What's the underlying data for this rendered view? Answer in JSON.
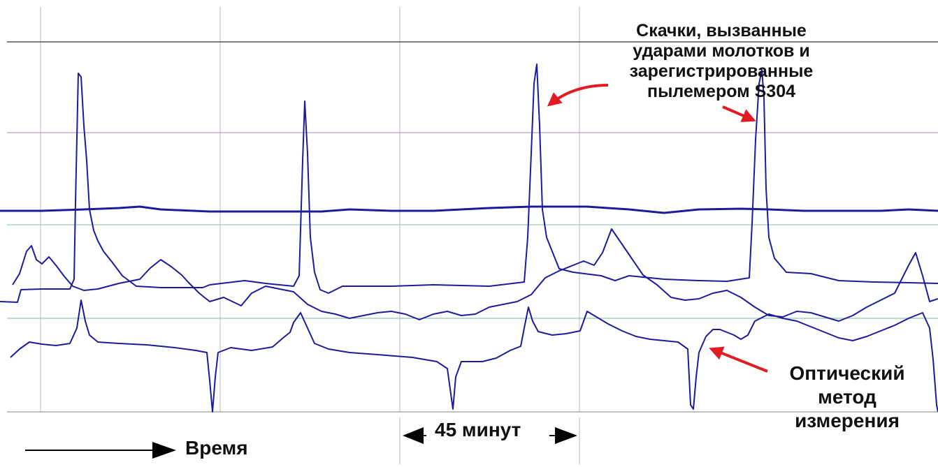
{
  "chart_data": {
    "type": "line",
    "title": "",
    "xlabel": "Время",
    "ylabel": "",
    "grid": true,
    "scale_note": "45 минут",
    "annotations": [
      {
        "name": "spikes-note",
        "lines": [
          "Скачки, вызванные",
          "ударами молотков и",
          "зарегистрированные",
          "пылемером S304"
        ]
      },
      {
        "name": "optical-note",
        "lines": [
          "Оптический",
          "метод",
          "измерения"
        ]
      }
    ],
    "series": [
      {
        "color": "#1c1c9a",
        "points": [
          [
            0,
            432
          ],
          [
            25,
            433
          ],
          [
            30,
            415
          ],
          [
            60,
            414
          ],
          [
            100,
            414
          ],
          [
            106,
            400
          ],
          [
            108,
            290
          ],
          [
            112,
            105
          ],
          [
            116,
            110
          ],
          [
            120,
            180
          ],
          [
            124,
            230
          ],
          [
            128,
            300
          ],
          [
            134,
            330
          ],
          [
            140,
            345
          ],
          [
            148,
            360
          ],
          [
            160,
            375
          ],
          [
            175,
            395
          ],
          [
            195,
            410
          ],
          [
            230,
            412
          ],
          [
            290,
            412
          ],
          [
            300,
            408
          ],
          [
            350,
            402
          ],
          [
            380,
            406
          ],
          [
            420,
            410
          ],
          [
            428,
            395
          ],
          [
            433,
            230
          ],
          [
            436,
            145
          ],
          [
            440,
            220
          ],
          [
            444,
            340
          ],
          [
            450,
            390
          ],
          [
            458,
            415
          ],
          [
            470,
            420
          ],
          [
            490,
            410
          ],
          [
            560,
            410
          ],
          [
            620,
            408
          ],
          [
            700,
            410
          ],
          [
            750,
            404
          ],
          [
            755,
            340
          ],
          [
            760,
            220
          ],
          [
            764,
            120
          ],
          [
            768,
            92
          ],
          [
            772,
            180
          ],
          [
            776,
            300
          ],
          [
            782,
            340
          ],
          [
            790,
            360
          ],
          [
            800,
            385
          ],
          [
            820,
            390
          ],
          [
            860,
            395
          ],
          [
            880,
            402
          ],
          [
            900,
            395
          ],
          [
            950,
            400
          ],
          [
            1000,
            402
          ],
          [
            1040,
            403
          ],
          [
            1072,
            398
          ],
          [
            1076,
            320
          ],
          [
            1081,
            200
          ],
          [
            1086,
            120
          ],
          [
            1090,
            100
          ],
          [
            1093,
            140
          ],
          [
            1096,
            270
          ],
          [
            1100,
            340
          ],
          [
            1108,
            370
          ],
          [
            1125,
            390
          ],
          [
            1160,
            392
          ],
          [
            1200,
            402
          ],
          [
            1250,
            404
          ],
          [
            1300,
            405
          ],
          [
            1342,
            406
          ]
        ]
      },
      {
        "color": "#1c1c9a",
        "points": [
          [
            0,
            302
          ],
          [
            60,
            302
          ],
          [
            120,
            300
          ],
          [
            170,
            298
          ],
          [
            200,
            296
          ],
          [
            230,
            300
          ],
          [
            300,
            303
          ],
          [
            380,
            303
          ],
          [
            460,
            303
          ],
          [
            500,
            300
          ],
          [
            560,
            302
          ],
          [
            620,
            302
          ],
          [
            700,
            298
          ],
          [
            760,
            296
          ],
          [
            840,
            296
          ],
          [
            900,
            300
          ],
          [
            950,
            305
          ],
          [
            1000,
            300
          ],
          [
            1060,
            299
          ],
          [
            1100,
            300
          ],
          [
            1150,
            302
          ],
          [
            1200,
            302
          ],
          [
            1260,
            302
          ],
          [
            1300,
            300
          ],
          [
            1342,
            302
          ]
        ]
      },
      {
        "color": "#1c1c9a",
        "points": [
          [
            18,
            408
          ],
          [
            28,
            392
          ],
          [
            38,
            360
          ],
          [
            45,
            352
          ],
          [
            52,
            372
          ],
          [
            60,
            378
          ],
          [
            70,
            368
          ],
          [
            80,
            380
          ],
          [
            92,
            396
          ],
          [
            104,
            410
          ],
          [
            120,
            416
          ],
          [
            140,
            414
          ],
          [
            170,
            406
          ],
          [
            200,
            400
          ],
          [
            215,
            384
          ],
          [
            230,
            372
          ],
          [
            245,
            382
          ],
          [
            260,
            394
          ],
          [
            270,
            405
          ],
          [
            285,
            420
          ],
          [
            300,
            432
          ],
          [
            320,
            426
          ],
          [
            345,
            438
          ],
          [
            360,
            420
          ],
          [
            380,
            410
          ],
          [
            400,
            414
          ],
          [
            420,
            418
          ],
          [
            440,
            436
          ],
          [
            460,
            446
          ],
          [
            480,
            450
          ],
          [
            500,
            456
          ],
          [
            520,
            452
          ],
          [
            540,
            448
          ],
          [
            560,
            446
          ],
          [
            580,
            450
          ],
          [
            600,
            458
          ],
          [
            620,
            450
          ],
          [
            640,
            446
          ],
          [
            660,
            452
          ],
          [
            680,
            450
          ],
          [
            700,
            440
          ],
          [
            720,
            436
          ],
          [
            740,
            432
          ],
          [
            760,
            422
          ],
          [
            780,
            398
          ],
          [
            800,
            388
          ],
          [
            820,
            380
          ],
          [
            835,
            374
          ],
          [
            850,
            380
          ],
          [
            862,
            362
          ],
          [
            875,
            328
          ],
          [
            890,
            350
          ],
          [
            905,
            372
          ],
          [
            920,
            394
          ],
          [
            940,
            408
          ],
          [
            960,
            426
          ],
          [
            980,
            430
          ],
          [
            1000,
            428
          ],
          [
            1020,
            420
          ],
          [
            1040,
            416
          ],
          [
            1060,
            426
          ],
          [
            1080,
            440
          ],
          [
            1100,
            452
          ],
          [
            1120,
            454
          ],
          [
            1140,
            446
          ],
          [
            1160,
            448
          ],
          [
            1180,
            454
          ],
          [
            1200,
            460
          ],
          [
            1220,
            452
          ],
          [
            1240,
            440
          ],
          [
            1260,
            430
          ],
          [
            1280,
            420
          ],
          [
            1300,
            380
          ],
          [
            1310,
            362
          ],
          [
            1320,
            395
          ],
          [
            1330,
            432
          ],
          [
            1342,
            428
          ]
        ]
      },
      {
        "color": "#1c1c9a",
        "points": [
          [
            15,
            512
          ],
          [
            28,
            500
          ],
          [
            42,
            490
          ],
          [
            60,
            493
          ],
          [
            80,
            495
          ],
          [
            100,
            492
          ],
          [
            110,
            470
          ],
          [
            116,
            430
          ],
          [
            122,
            460
          ],
          [
            128,
            480
          ],
          [
            140,
            490
          ],
          [
            170,
            492
          ],
          [
            210,
            494
          ],
          [
            250,
            498
          ],
          [
            280,
            502
          ],
          [
            296,
            505
          ],
          [
            300,
            545
          ],
          [
            304,
            590
          ],
          [
            308,
            540
          ],
          [
            312,
            505
          ],
          [
            330,
            498
          ],
          [
            360,
            502
          ],
          [
            390,
            497
          ],
          [
            405,
            484
          ],
          [
            415,
            476
          ],
          [
            420,
            462
          ],
          [
            430,
            448
          ],
          [
            440,
            470
          ],
          [
            450,
            492
          ],
          [
            470,
            500
          ],
          [
            500,
            505
          ],
          [
            540,
            508
          ],
          [
            590,
            512
          ],
          [
            625,
            518
          ],
          [
            640,
            528
          ],
          [
            648,
            586
          ],
          [
            652,
            540
          ],
          [
            660,
            518
          ],
          [
            690,
            518
          ],
          [
            710,
            513
          ],
          [
            730,
            502
          ],
          [
            745,
            496
          ],
          [
            750,
            470
          ],
          [
            756,
            440
          ],
          [
            762,
            460
          ],
          [
            770,
            475
          ],
          [
            790,
            480
          ],
          [
            810,
            478
          ],
          [
            830,
            474
          ],
          [
            840,
            446
          ],
          [
            850,
            452
          ],
          [
            860,
            458
          ],
          [
            870,
            464
          ],
          [
            890,
            474
          ],
          [
            910,
            482
          ],
          [
            930,
            486
          ],
          [
            950,
            488
          ],
          [
            970,
            490
          ],
          [
            984,
            500
          ],
          [
            988,
            580
          ],
          [
            992,
            586
          ],
          [
            996,
            540
          ],
          [
            1000,
            505
          ],
          [
            1010,
            482
          ],
          [
            1020,
            472
          ],
          [
            1030,
            472
          ],
          [
            1050,
            480
          ],
          [
            1060,
            486
          ],
          [
            1070,
            480
          ],
          [
            1080,
            460
          ],
          [
            1100,
            450
          ],
          [
            1120,
            456
          ],
          [
            1140,
            460
          ],
          [
            1160,
            468
          ],
          [
            1180,
            476
          ],
          [
            1200,
            484
          ],
          [
            1220,
            488
          ],
          [
            1240,
            482
          ],
          [
            1260,
            474
          ],
          [
            1280,
            466
          ],
          [
            1300,
            456
          ],
          [
            1320,
            448
          ],
          [
            1330,
            470
          ],
          [
            1335,
            515
          ],
          [
            1340,
            580
          ],
          [
            1342,
            590
          ]
        ]
      }
    ]
  }
}
